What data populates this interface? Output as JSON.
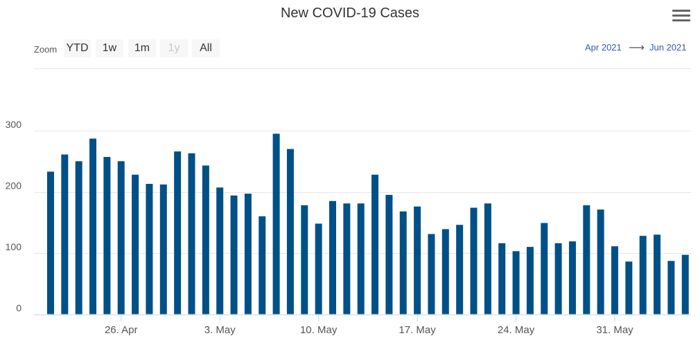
{
  "header": {
    "title": "New COVID-19 Cases",
    "menu_icon": "hamburger-menu-icon"
  },
  "range_selector": {
    "zoom_label": "Zoom",
    "buttons": [
      {
        "label": "YTD",
        "enabled": true
      },
      {
        "label": "1w",
        "enabled": true
      },
      {
        "label": "1m",
        "enabled": true
      },
      {
        "label": "1y",
        "enabled": false
      },
      {
        "label": "All",
        "enabled": true
      }
    ],
    "from": "Apr 2021",
    "arrow": "⟶",
    "to": "Jun 2021"
  },
  "colors": {
    "bar": "#005088",
    "grid": "#e6e6e6",
    "axis_text": "#555555",
    "range_text": "#335cad"
  },
  "chart_data": {
    "type": "bar",
    "title": "New COVID-19 Cases",
    "xlabel": "",
    "ylabel": "",
    "ylim": [
      0,
      300
    ],
    "yticks": [
      0,
      100,
      200,
      300
    ],
    "x_tick_labels": [
      {
        "date": "2021-04-26",
        "label": "26. Apr"
      },
      {
        "date": "2021-05-03",
        "label": "3. May"
      },
      {
        "date": "2021-05-10",
        "label": "10. May"
      },
      {
        "date": "2021-05-17",
        "label": "17. May"
      },
      {
        "date": "2021-05-24",
        "label": "24. May"
      },
      {
        "date": "2021-05-31",
        "label": "31. May"
      }
    ],
    "categories": [
      "2021-04-21",
      "2021-04-22",
      "2021-04-23",
      "2021-04-24",
      "2021-04-25",
      "2021-04-26",
      "2021-04-27",
      "2021-04-28",
      "2021-04-29",
      "2021-04-30",
      "2021-05-01",
      "2021-05-02",
      "2021-05-03",
      "2021-05-04",
      "2021-05-05",
      "2021-05-06",
      "2021-05-07",
      "2021-05-08",
      "2021-05-09",
      "2021-05-10",
      "2021-05-11",
      "2021-05-12",
      "2021-05-13",
      "2021-05-14",
      "2021-05-15",
      "2021-05-16",
      "2021-05-17",
      "2021-05-18",
      "2021-05-19",
      "2021-05-20",
      "2021-05-21",
      "2021-05-22",
      "2021-05-23",
      "2021-05-24",
      "2021-05-25",
      "2021-05-26",
      "2021-05-27",
      "2021-05-28",
      "2021-05-29",
      "2021-05-30",
      "2021-05-31",
      "2021-06-01",
      "2021-06-02",
      "2021-06-03",
      "2021-06-04",
      "2021-06-05"
    ],
    "values": [
      233,
      261,
      250,
      287,
      257,
      250,
      228,
      213,
      212,
      266,
      263,
      243,
      207,
      194,
      197,
      160,
      295,
      270,
      178,
      148,
      185,
      181,
      181,
      228,
      195,
      168,
      176,
      131,
      139,
      146,
      174,
      181,
      116,
      103,
      110,
      149,
      116,
      119,
      178,
      171,
      111,
      86,
      128,
      130,
      87,
      97
    ]
  }
}
